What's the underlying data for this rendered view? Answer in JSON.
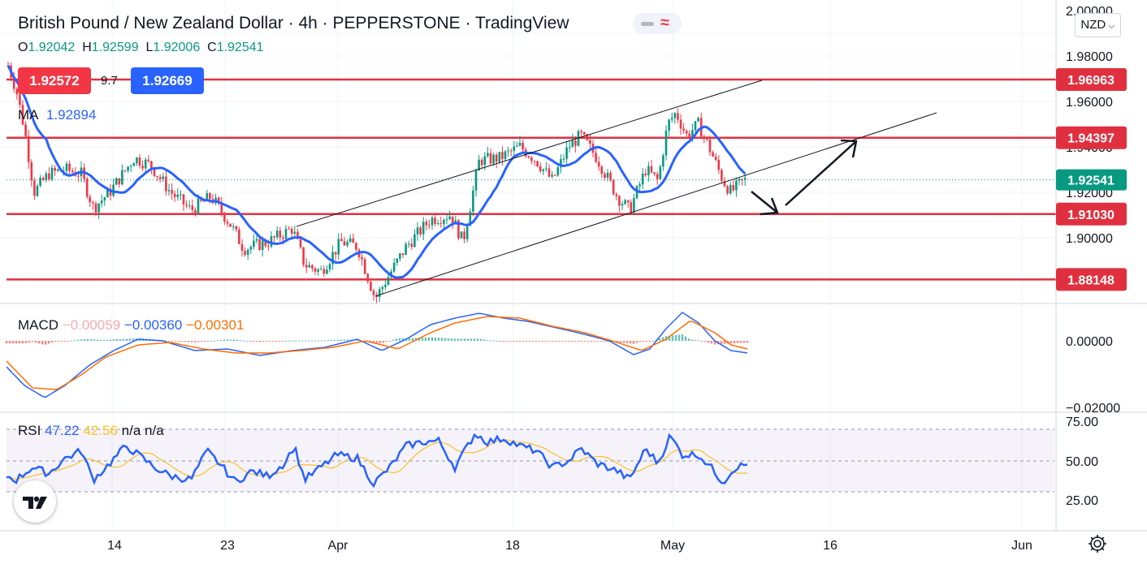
{
  "header": {
    "title": "British Pound / New Zealand Dollar · 4h · PEPPERSTONE · TradingView",
    "ohlc": [
      {
        "key": "O",
        "value": "1.92042"
      },
      {
        "key": "H",
        "value": "1.92599"
      },
      {
        "key": "L",
        "value": "1.92006"
      },
      {
        "key": "C",
        "value": "1.92541"
      }
    ],
    "sell_price": "1.92572",
    "spread": "9.7",
    "buy_price": "1.92669",
    "currency_button": "NZD",
    "ma_label": "MA",
    "ma_value": "1.92894"
  },
  "indicators": {
    "macd_label": "MACD",
    "macd_hist": "−0.00059",
    "macd_line": "−0.00360",
    "macd_signal": "−0.00301",
    "rsi_label": "RSI",
    "rsi_value": "47.22",
    "rsi_ma": "42.56",
    "rsi_na1": "n/a",
    "rsi_na2": "n/a"
  },
  "colors": {
    "bull": "#089981",
    "bear": "#f23645",
    "ma": "#2962ff",
    "level": "#e0303f",
    "macd": "#2962ff",
    "signal": "#ff6d00",
    "rsi": "#2962ff",
    "rsi_ma": "#f7c325",
    "rsi_band": "#7e57c2"
  },
  "price_axis": {
    "ticks": [
      "2.00000",
      "1.98000",
      "1.96000",
      "1.94000",
      "1.92000",
      "1.90000"
    ],
    "min": 1.868,
    "max": 2.0
  },
  "macd_axis": {
    "ticks": [
      "0.00000",
      "−0.02000"
    ]
  },
  "rsi_axis": {
    "ticks": [
      "75.00",
      "50.00",
      "25.00"
    ]
  },
  "time_axis": {
    "ticks": [
      "14",
      "23",
      "Apr",
      "18",
      "May",
      "16",
      "Jun"
    ]
  },
  "levels": [
    {
      "price": 1.96963,
      "label": "1.96963"
    },
    {
      "price": 1.94397,
      "label": "1.94397"
    },
    {
      "price": 1.9103,
      "label": "1.91030"
    },
    {
      "price": 1.88148,
      "label": "1.88148"
    }
  ],
  "last_price": {
    "price": 1.92541,
    "label": "1.92541"
  }
}
